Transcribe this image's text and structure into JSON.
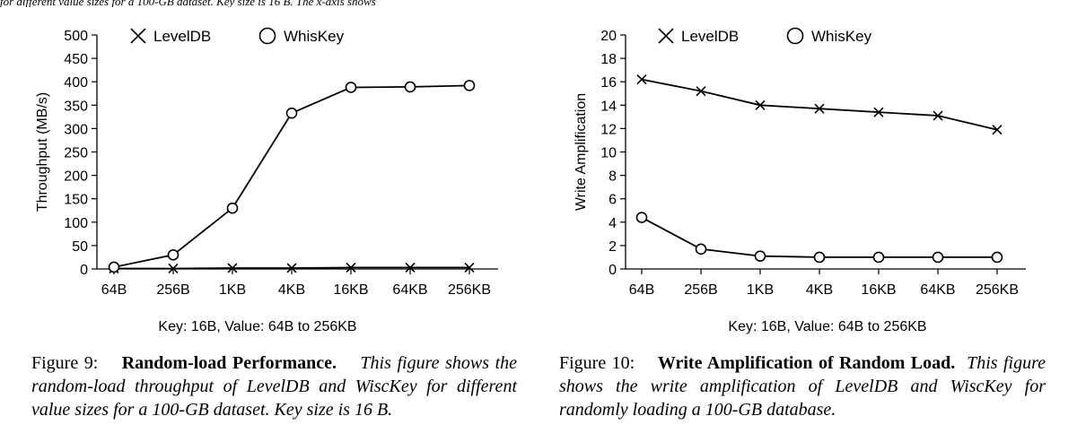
{
  "top_text": "for different value sizes for a 100-GB dataset. Key size is 16 B. The x-axis shows",
  "chart_data": [
    {
      "type": "line",
      "categories": [
        "64B",
        "256B",
        "1KB",
        "4KB",
        "16KB",
        "64KB",
        "256KB"
      ],
      "ylabel": "Throughput (MB/s)",
      "xlabel": "Key: 16B, Value: 64B to 256KB",
      "ylim": [
        0,
        500
      ],
      "yticks": [
        "0",
        "50",
        "100",
        "150",
        "200",
        "250",
        "300",
        "350",
        "400",
        "450",
        "500"
      ],
      "legend_position": "top-left",
      "grid": false,
      "series": [
        {
          "name": "LevelDB",
          "marker": "x",
          "values": [
            1,
            1,
            2,
            2,
            3,
            3,
            3
          ]
        },
        {
          "name": "WhisKey",
          "marker": "o",
          "values": [
            4,
            30,
            130,
            333,
            388,
            389,
            392
          ]
        }
      ]
    },
    {
      "type": "line",
      "categories": [
        "64B",
        "256B",
        "1KB",
        "4KB",
        "16KB",
        "64KB",
        "256KB"
      ],
      "ylabel": "Write Amplification",
      "xlabel": "Key: 16B, Value: 64B to 256KB",
      "ylim": [
        0,
        20
      ],
      "yticks": [
        "0",
        "2",
        "4",
        "6",
        "8",
        "10",
        "12",
        "14",
        "16",
        "18",
        "20"
      ],
      "legend_position": "top-left",
      "grid": false,
      "series": [
        {
          "name": "LevelDB",
          "marker": "x",
          "values": [
            16.2,
            15.2,
            14.0,
            13.7,
            13.4,
            13.1,
            11.9
          ]
        },
        {
          "name": "WhisKey",
          "marker": "o",
          "values": [
            4.4,
            1.7,
            1.1,
            1.0,
            1.0,
            1.0,
            1.0
          ]
        }
      ]
    }
  ],
  "captions": [
    {
      "label": "Figure 9:",
      "title": "Random-load Performance.",
      "text": "This figure shows the random-load throughput of LevelDB and WiscKey for different value sizes for a 100-GB dataset. Key size is 16 B."
    },
    {
      "label": "Figure 10:",
      "title": "Write Amplification of Random Load.",
      "text": "This figure shows the write amplification of LevelDB and WiscKey for randomly loading a 100-GB database."
    }
  ]
}
